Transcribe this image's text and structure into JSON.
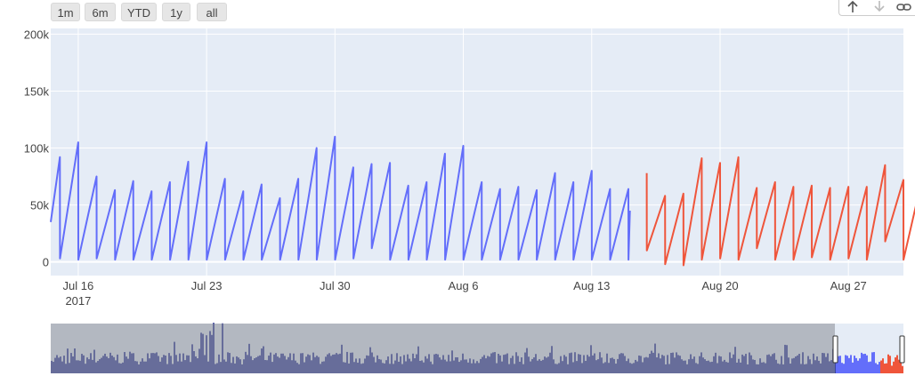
{
  "range_selector": {
    "buttons": [
      {
        "label": "1m"
      },
      {
        "label": "6m"
      },
      {
        "label": "YTD"
      },
      {
        "label": "1y"
      },
      {
        "label": "all"
      }
    ]
  },
  "modebar": {
    "icons": [
      "arrow-up-icon",
      "arrow-down-icon",
      "link-icon"
    ]
  },
  "colors": {
    "plot_bg": "#e5ecf6",
    "grid": "#ffffff",
    "series_a": "#636efa",
    "series_b": "#ef553b",
    "slider_mask": "#8a8e96",
    "slider_fill_a": "#3c45a0",
    "slider_window_bg": "#e5ecf6"
  },
  "chart_data": {
    "type": "line",
    "title": "",
    "xlabel": "",
    "ylabel": "",
    "x_range": [
      "2017-07-14T12:00",
      "2017-08-30T00:00"
    ],
    "ylim": [
      -12000,
      205000
    ],
    "y_ticks": [
      {
        "value": 0,
        "label": "0"
      },
      {
        "value": 50000,
        "label": "50k"
      },
      {
        "value": 100000,
        "label": "100k"
      },
      {
        "value": 150000,
        "label": "150k"
      },
      {
        "value": 200000,
        "label": "200k"
      }
    ],
    "x_ticks": [
      {
        "date": "2017-07-16",
        "label": "Jul 16",
        "sublabel": "2017"
      },
      {
        "date": "2017-07-23",
        "label": "Jul 23",
        "sublabel": ""
      },
      {
        "date": "2017-07-30",
        "label": "Jul 30",
        "sublabel": ""
      },
      {
        "date": "2017-08-06",
        "label": "Aug 6",
        "sublabel": ""
      },
      {
        "date": "2017-08-13",
        "label": "Aug 13",
        "sublabel": ""
      },
      {
        "date": "2017-08-20",
        "label": "Aug 20",
        "sublabel": ""
      },
      {
        "date": "2017-08-27",
        "label": "Aug 27",
        "sublabel": ""
      }
    ],
    "grid": true,
    "legend": "none",
    "series": [
      {
        "color": "#636efa",
        "points": [
          [
            "2017-07-14T12:00",
            35000
          ],
          [
            "2017-07-15T00:00",
            92000
          ],
          [
            "2017-07-15T00:10",
            3000
          ],
          [
            "2017-07-16T00:00",
            105000
          ],
          [
            "2017-07-16T00:10",
            2000
          ],
          [
            "2017-07-17T00:00",
            75000
          ],
          [
            "2017-07-17T00:10",
            3000
          ],
          [
            "2017-07-18T00:00",
            63000
          ],
          [
            "2017-07-18T00:10",
            2000
          ],
          [
            "2017-07-19T00:00",
            71000
          ],
          [
            "2017-07-19T00:10",
            2000
          ],
          [
            "2017-07-20T00:00",
            62000
          ],
          [
            "2017-07-20T00:10",
            2000
          ],
          [
            "2017-07-21T00:00",
            70000
          ],
          [
            "2017-07-21T00:10",
            2000
          ],
          [
            "2017-07-22T00:00",
            88000
          ],
          [
            "2017-07-22T00:10",
            2000
          ],
          [
            "2017-07-23T00:00",
            105000
          ],
          [
            "2017-07-23T00:10",
            2000
          ],
          [
            "2017-07-24T00:00",
            73000
          ],
          [
            "2017-07-24T00:10",
            2000
          ],
          [
            "2017-07-25T00:00",
            62000
          ],
          [
            "2017-07-25T00:10",
            2000
          ],
          [
            "2017-07-26T00:00",
            68000
          ],
          [
            "2017-07-26T00:10",
            2000
          ],
          [
            "2017-07-27T00:00",
            56000
          ],
          [
            "2017-07-27T00:10",
            2000
          ],
          [
            "2017-07-28T00:00",
            73000
          ],
          [
            "2017-07-28T00:10",
            2000
          ],
          [
            "2017-07-29T00:00",
            100000
          ],
          [
            "2017-07-29T00:10",
            2000
          ],
          [
            "2017-07-30T00:00",
            110000
          ],
          [
            "2017-07-30T00:10",
            2000
          ],
          [
            "2017-07-31T00:00",
            83000
          ],
          [
            "2017-07-31T00:10",
            3000
          ],
          [
            "2017-08-01T00:00",
            86000
          ],
          [
            "2017-08-01T00:10",
            12000
          ],
          [
            "2017-08-02T00:00",
            87000
          ],
          [
            "2017-08-02T00:10",
            2000
          ],
          [
            "2017-08-03T00:00",
            67000
          ],
          [
            "2017-08-03T00:10",
            2000
          ],
          [
            "2017-08-04T00:00",
            70000
          ],
          [
            "2017-08-04T00:10",
            2000
          ],
          [
            "2017-08-05T00:00",
            95000
          ],
          [
            "2017-08-05T00:10",
            2000
          ],
          [
            "2017-08-06T00:00",
            102000
          ],
          [
            "2017-08-06T00:10",
            2000
          ],
          [
            "2017-08-07T00:00",
            70000
          ],
          [
            "2017-08-07T00:10",
            2000
          ],
          [
            "2017-08-08T00:00",
            64000
          ],
          [
            "2017-08-08T00:10",
            2000
          ],
          [
            "2017-08-09T00:00",
            66000
          ],
          [
            "2017-08-09T00:10",
            2000
          ],
          [
            "2017-08-10T00:00",
            63000
          ],
          [
            "2017-08-10T00:10",
            2000
          ],
          [
            "2017-08-11T00:00",
            78000
          ],
          [
            "2017-08-11T00:10",
            2000
          ],
          [
            "2017-08-12T00:00",
            70000
          ],
          [
            "2017-08-12T00:10",
            2000
          ],
          [
            "2017-08-13T00:00",
            80000
          ],
          [
            "2017-08-13T00:10",
            2000
          ],
          [
            "2017-08-14T00:00",
            64000
          ],
          [
            "2017-08-14T00:10",
            2000
          ],
          [
            "2017-08-15T00:00",
            64000
          ],
          [
            "2017-08-15T00:10",
            2000
          ],
          [
            "2017-08-15T02:00",
            45000
          ]
        ]
      },
      {
        "color": "#ef553b",
        "points": [
          [
            "2017-08-16T00:00",
            78000
          ],
          [
            "2017-08-16T00:10",
            10000
          ],
          [
            "2017-08-17T00:00",
            58000
          ],
          [
            "2017-08-17T00:10",
            -2000
          ],
          [
            "2017-08-18T00:00",
            60000
          ],
          [
            "2017-08-18T00:10",
            -3000
          ],
          [
            "2017-08-19T00:00",
            91000
          ],
          [
            "2017-08-19T00:10",
            2000
          ],
          [
            "2017-08-20T00:00",
            87000
          ],
          [
            "2017-08-20T00:10",
            3000
          ],
          [
            "2017-08-21T00:00",
            92000
          ],
          [
            "2017-08-21T00:10",
            2000
          ],
          [
            "2017-08-22T00:00",
            65000
          ],
          [
            "2017-08-22T00:10",
            12000
          ],
          [
            "2017-08-23T00:00",
            70000
          ],
          [
            "2017-08-23T00:10",
            2000
          ],
          [
            "2017-08-24T00:00",
            66000
          ],
          [
            "2017-08-24T00:10",
            2000
          ],
          [
            "2017-08-25T00:00",
            67000
          ],
          [
            "2017-08-25T00:10",
            4000
          ],
          [
            "2017-08-26T00:00",
            65000
          ],
          [
            "2017-08-26T00:10",
            2000
          ],
          [
            "2017-08-27T00:00",
            66000
          ],
          [
            "2017-08-27T00:10",
            3000
          ],
          [
            "2017-08-28T00:00",
            66000
          ],
          [
            "2017-08-28T00:10",
            2000
          ],
          [
            "2017-08-29T00:00",
            85000
          ],
          [
            "2017-08-29T00:10",
            18000
          ],
          [
            "2017-08-30T00:00",
            72000
          ],
          [
            "2017-08-30T00:10",
            2000
          ],
          [
            "2017-08-30T22:00",
            66000
          ]
        ]
      }
    ]
  }
}
